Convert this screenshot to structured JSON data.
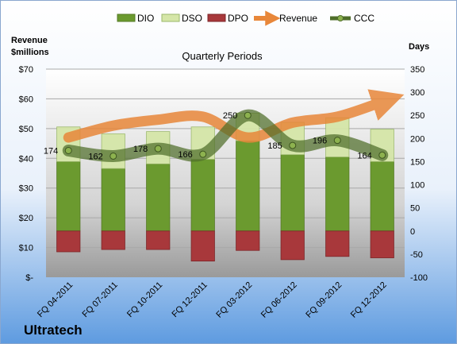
{
  "company": "Ultratech",
  "chart_data": {
    "type": "bar",
    "title": "Quarterly Periods",
    "left_axis": {
      "label_line1": "Revenue",
      "label_line2": "$millions",
      "ylim": [
        0,
        70
      ],
      "ticks": [
        0,
        10,
        20,
        30,
        40,
        50,
        60,
        70
      ],
      "tick_labels": [
        "$-",
        "$10",
        "$20",
        "$30",
        "$40",
        "$50",
        "$60",
        "$70"
      ]
    },
    "right_axis": {
      "label": "Days",
      "ylim": [
        -100,
        350
      ],
      "ticks": [
        -100,
        -50,
        0,
        50,
        100,
        150,
        200,
        250,
        300,
        350
      ],
      "tick_labels": [
        "-100",
        "-50",
        "0",
        "50",
        "100",
        "150",
        "200",
        "250",
        "300",
        "350"
      ]
    },
    "categories": [
      "FQ 04-2011",
      "FQ 07-2011",
      "FQ 10-2011",
      "FQ 12-2011",
      "FQ 03-2012",
      "FQ 06-2012",
      "FQ 09-2012",
      "FQ 12-2012"
    ],
    "legend": [
      "DIO",
      "DSO",
      "DPO",
      "Revenue",
      "CCC"
    ],
    "series": [
      {
        "name": "DIO",
        "axis": "right",
        "values": [
          150,
          135,
          145,
          155,
          195,
          165,
          160,
          150
        ],
        "color": "#6b9a2f"
      },
      {
        "name": "DSO",
        "axis": "right",
        "values": [
          75,
          75,
          70,
          70,
          60,
          70,
          85,
          70
        ],
        "color": "#d5e6a8"
      },
      {
        "name": "DPO",
        "axis": "right",
        "values": [
          -45,
          -40,
          -40,
          -65,
          -42,
          -62,
          -55,
          -58
        ],
        "color": "#a8383b"
      },
      {
        "name": "Revenue",
        "axis": "left",
        "values": [
          47,
          51,
          53,
          54,
          47,
          52,
          54,
          59
        ],
        "color": "#e8873a"
      },
      {
        "name": "CCC",
        "axis": "right",
        "values": [
          174,
          162,
          178,
          166,
          250,
          185,
          196,
          164
        ],
        "labels": [
          "174",
          "162",
          "178",
          "166",
          "250",
          "185",
          "196",
          "164"
        ],
        "color": "#4f6e2a"
      }
    ],
    "grid": true,
    "legend_position": "top"
  }
}
